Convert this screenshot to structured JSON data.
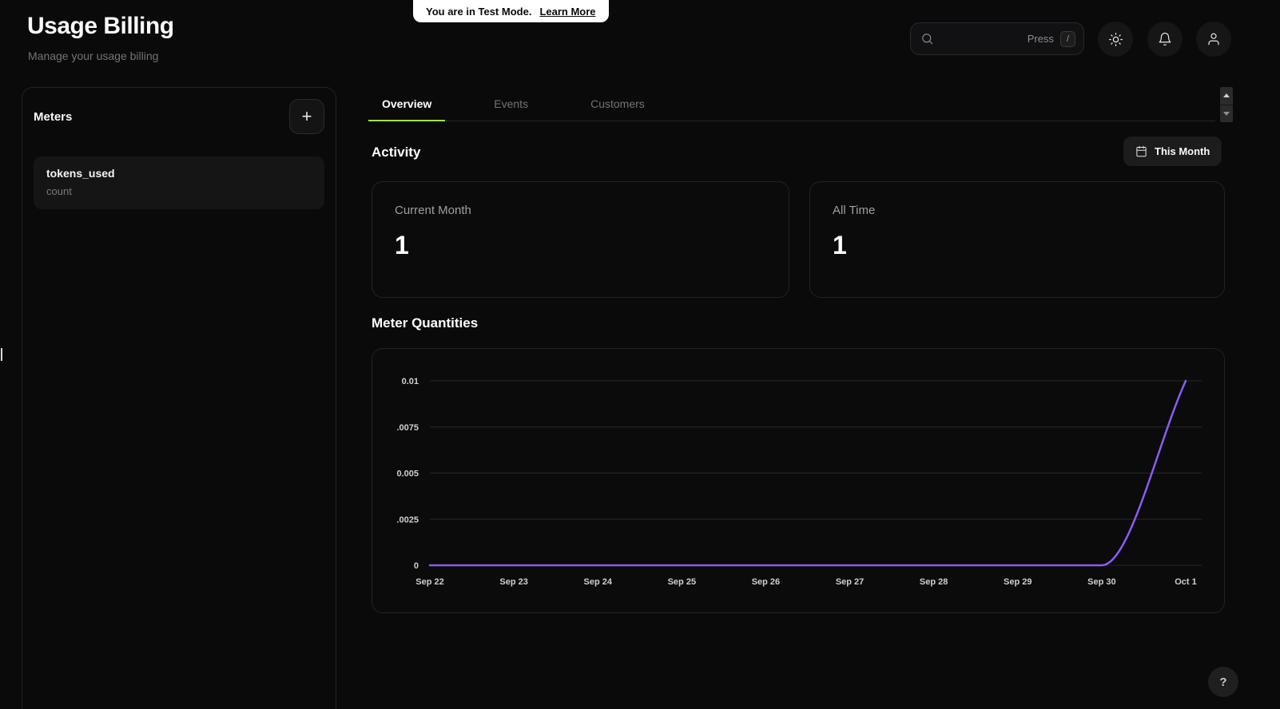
{
  "colors": {
    "background": "#0a0a0a",
    "accent": "#a3e635",
    "chart_line": "#8b5cf6",
    "banner_bg": "#ffffff",
    "panel_border": "#232323"
  },
  "banner": {
    "text": "You are in Test Mode.",
    "link_label": "Learn More"
  },
  "header": {
    "title": "Usage Billing",
    "subtitle": "Manage your usage billing",
    "search": {
      "press_label": "Press",
      "shortcut_key": "/"
    },
    "icons": {
      "search": "magnifier",
      "theme_toggle": "sun",
      "notifications": "bell",
      "account": "person"
    }
  },
  "meters_panel": {
    "heading": "Meters",
    "add_button": "+",
    "items": [
      {
        "name": "tokens_used",
        "aggregation": "count"
      }
    ]
  },
  "tabs": [
    {
      "label": "Overview",
      "active": true
    },
    {
      "label": "Events",
      "active": false
    },
    {
      "label": "Customers",
      "active": false
    }
  ],
  "activity": {
    "heading": "Activity",
    "date_range_label": "This Month",
    "stats": [
      {
        "label": "Current Month",
        "value": "1"
      },
      {
        "label": "All Time",
        "value": "1"
      }
    ]
  },
  "chart_section": {
    "heading": "Meter Quantities"
  },
  "chart_data": {
    "type": "line",
    "title": "Meter Quantities",
    "x": [
      "Sep 22",
      "Sep 23",
      "Sep 24",
      "Sep 25",
      "Sep 26",
      "Sep 27",
      "Sep 28",
      "Sep 29",
      "Sep 30",
      "Oct 1"
    ],
    "values": [
      0,
      0,
      0,
      0,
      0,
      0,
      0,
      0,
      0,
      0.01
    ],
    "y_tick_labels": [
      "0.01",
      ".0075",
      "0.005",
      ".0025",
      "0"
    ],
    "y_tick_values": [
      0.01,
      0.0075,
      0.005,
      0.0025,
      0
    ],
    "ylim": [
      0,
      0.01
    ],
    "grid": true,
    "legend": false,
    "line_color": "#8b5cf6"
  },
  "help": {
    "label": "?"
  }
}
